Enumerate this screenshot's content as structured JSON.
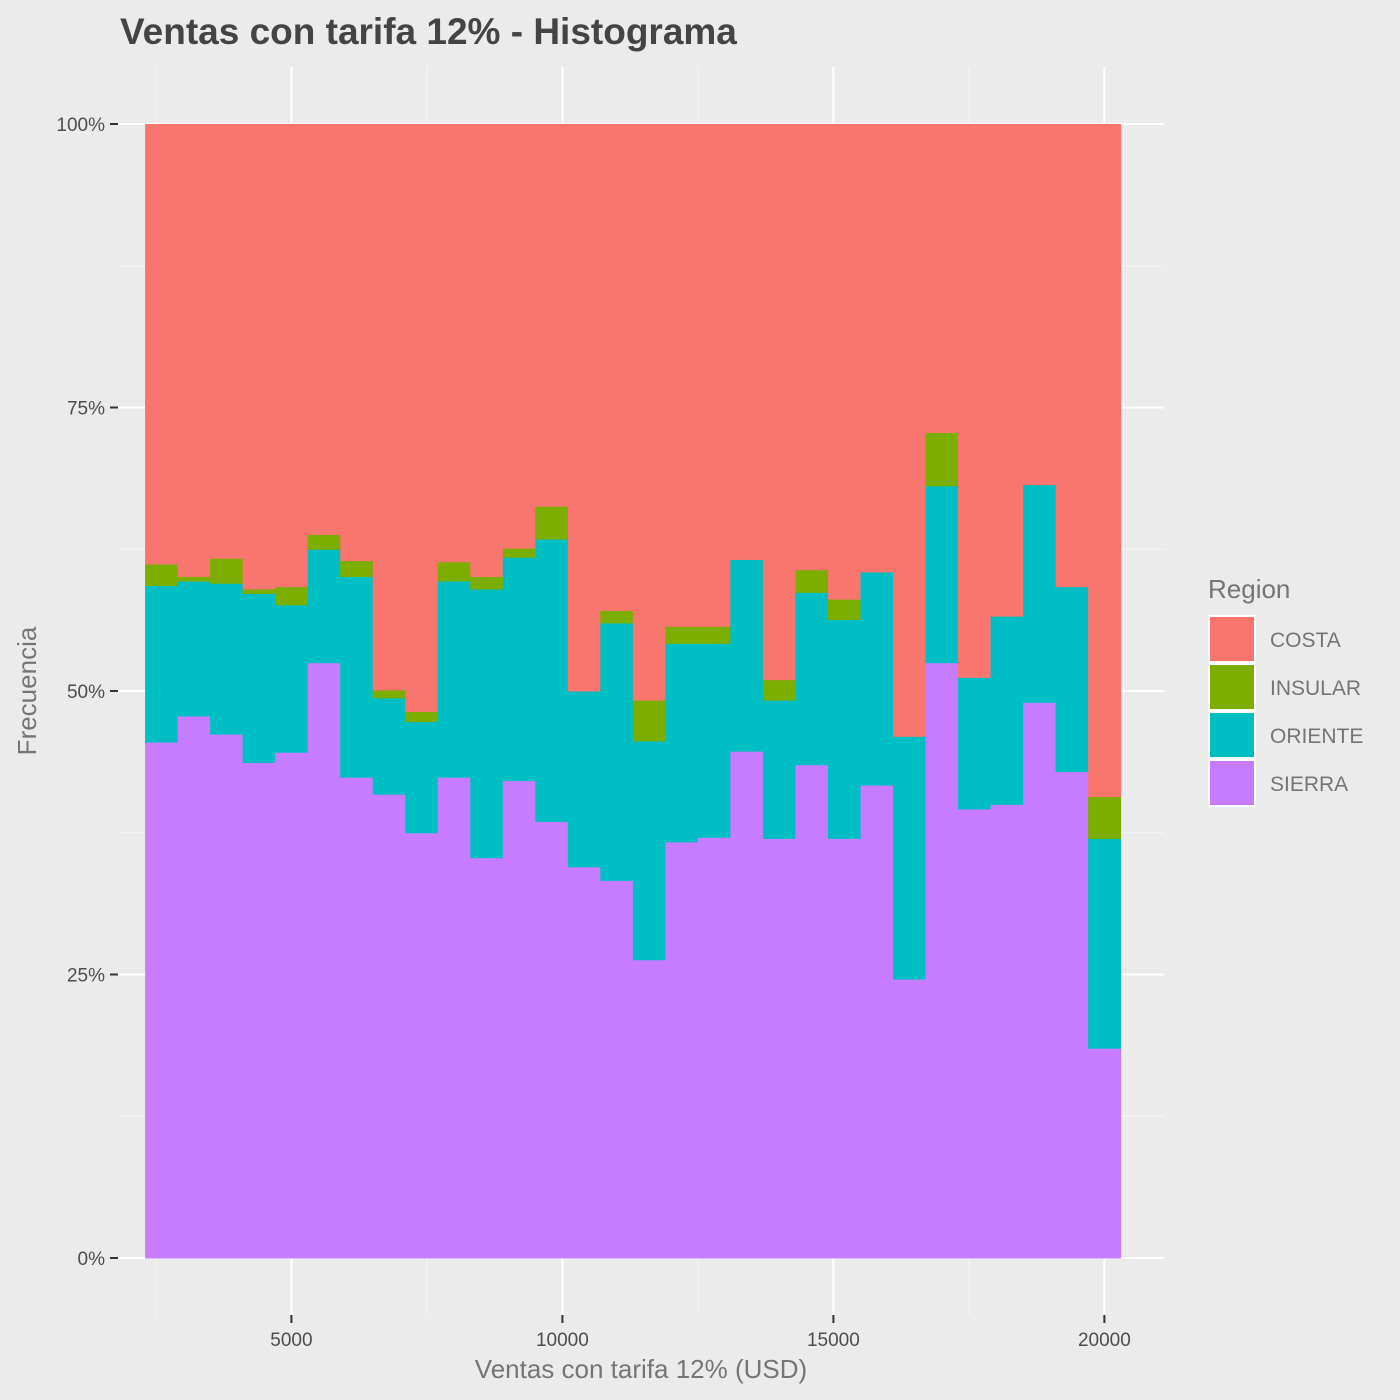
{
  "chart_data": {
    "type": "bar",
    "stacked": "fill",
    "title": "Ventas con tarifa 12% - Histograma",
    "xlabel": "Ventas con tarifa 12% (USD)",
    "ylabel": "Frecuencia",
    "xlim": [
      1800,
      21100
    ],
    "ylim": [
      0,
      1
    ],
    "x_ticks": [
      5000,
      10000,
      15000,
      20000
    ],
    "x_tick_labels": [
      "5000",
      "10000",
      "15000",
      "20000"
    ],
    "y_ticks": [
      0,
      0.25,
      0.5,
      0.75,
      1
    ],
    "y_tick_labels": [
      "0%",
      "25%",
      "50%",
      "75%",
      "100%"
    ],
    "grid": true,
    "legend": {
      "title": "Region",
      "position": "right"
    },
    "bin_edges": [
      2300,
      2900,
      3500,
      4100,
      4700,
      5300,
      5900,
      6500,
      7100,
      7700,
      8300,
      8900,
      9500,
      10100,
      10700,
      11300,
      11900,
      12500,
      13100,
      13700,
      14300,
      14900,
      15500,
      16100,
      16700,
      17300,
      17900,
      18500,
      19100,
      19700,
      20300
    ],
    "series": [
      {
        "name": "SIERRA",
        "color": "#C77CFF",
        "values": [
          0.455,
          0.478,
          0.462,
          0.437,
          0.446,
          0.525,
          0.424,
          0.409,
          0.375,
          0.424,
          0.353,
          0.421,
          0.385,
          0.345,
          0.333,
          0.263,
          0.367,
          0.371,
          0.447,
          0.37,
          0.435,
          0.37,
          0.417,
          0.246,
          0.525,
          0.396,
          0.4,
          0.49,
          0.429,
          0.185
        ]
      },
      {
        "name": "ORIENTE",
        "color": "#00BFC4",
        "values": [
          0.138,
          0.119,
          0.133,
          0.149,
          0.13,
          0.1,
          0.177,
          0.085,
          0.098,
          0.173,
          0.237,
          0.197,
          0.249,
          0.155,
          0.227,
          0.193,
          0.175,
          0.171,
          0.169,
          0.122,
          0.152,
          0.193,
          0.188,
          0.214,
          0.156,
          0.116,
          0.166,
          0.192,
          0.163,
          0.185
        ]
      },
      {
        "name": "INSULAR",
        "color": "#7CAE00",
        "values": [
          0.019,
          0.004,
          0.022,
          0.004,
          0.016,
          0.013,
          0.014,
          0.007,
          0.009,
          0.017,
          0.011,
          0.008,
          0.029,
          0,
          0.011,
          0.036,
          0.015,
          0.015,
          0,
          0.018,
          0.02,
          0.018,
          0,
          0,
          0.047,
          0,
          0,
          0,
          0,
          0.037
        ]
      },
      {
        "name": "COSTA",
        "color": "#F8766D",
        "values": [
          0.388,
          0.399,
          0.383,
          0.41,
          0.408,
          0.362,
          0.385,
          0.499,
          0.518,
          0.386,
          0.399,
          0.374,
          0.337,
          0.5,
          0.429,
          0.508,
          0.443,
          0.443,
          0.384,
          0.49,
          0.393,
          0.419,
          0.395,
          0.54,
          0.272,
          0.488,
          0.434,
          0.318,
          0.408,
          0.593
        ]
      }
    ]
  }
}
